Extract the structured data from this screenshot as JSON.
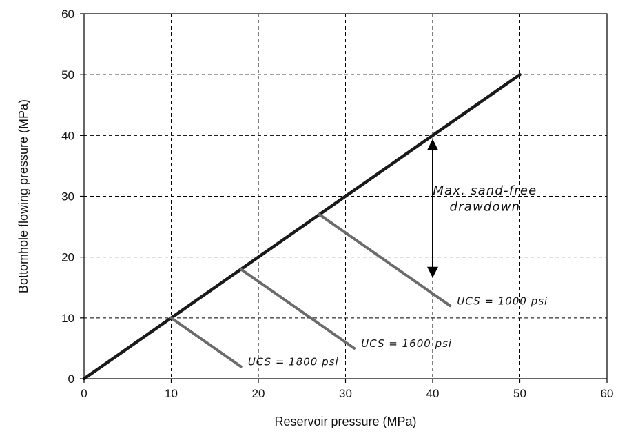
{
  "chart_data": {
    "type": "line",
    "title": "",
    "xlabel": "Reservoir pressure (MPa)",
    "ylabel": "Bottomhole flowing pressure (MPa)",
    "xlim": [
      0,
      60
    ],
    "ylim": [
      0,
      60
    ],
    "xticks": [
      0,
      10,
      20,
      30,
      40,
      50,
      60
    ],
    "yticks": [
      0,
      10,
      20,
      30,
      40,
      50,
      60
    ],
    "xtick_labels": [
      "0",
      "10",
      "20",
      "30",
      "40",
      "50",
      "60"
    ],
    "ytick_labels": [
      "0",
      "10",
      "20",
      "30",
      "40",
      "50",
      "60"
    ],
    "grid": true,
    "grid_style": "dashed",
    "series": [
      {
        "name": "",
        "color": "#1a1a1a",
        "x": [
          0,
          50
        ],
        "y": [
          0,
          50
        ]
      },
      {
        "name": "UCS = 1800 psi",
        "color": "#6b6b6b",
        "x": [
          10,
          18
        ],
        "y": [
          10,
          2
        ]
      },
      {
        "name": "UCS = 1600 psi",
        "color": "#6b6b6b",
        "x": [
          18,
          31
        ],
        "y": [
          18,
          5
        ]
      },
      {
        "name": "UCS = 1000 psi",
        "color": "#6b6b6b",
        "x": [
          27,
          42
        ],
        "y": [
          27,
          12
        ]
      }
    ],
    "annotations": [
      {
        "lines": [
          "UCS = 1800 psi"
        ],
        "x": 18.8,
        "y": 2.2,
        "anchor": "start"
      },
      {
        "lines": [
          "UCS = 1600 psi"
        ],
        "x": 31.8,
        "y": 5.2,
        "anchor": "start"
      },
      {
        "lines": [
          "UCS = 1000 psi"
        ],
        "x": 42.8,
        "y": 12.2,
        "anchor": "start"
      },
      {
        "lines": [
          "Max. sand-free",
          "drawdown"
        ],
        "x": 46.0,
        "y": 30.3,
        "anchor": "middle"
      }
    ],
    "arrow": {
      "x": 40,
      "y_from": 38.5,
      "y_to": 17.5
    }
  }
}
